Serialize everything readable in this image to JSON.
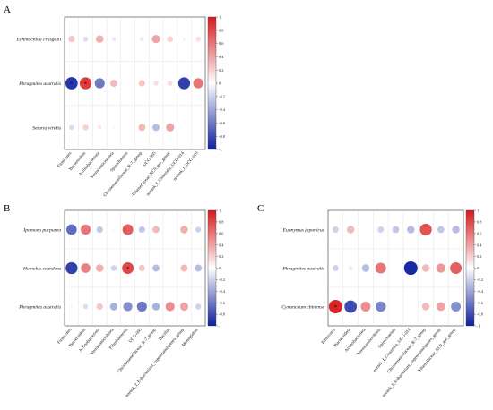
{
  "colorbar": {
    "ticks": [
      1,
      0.8,
      0.6,
      0.4,
      0.2,
      0,
      -0.2,
      -0.4,
      -0.6,
      -0.8,
      -1
    ],
    "colors": {
      "positive": "#d7191c",
      "neutral": "#ffffff",
      "negative": "#0b1f9e"
    }
  },
  "chart_data": [
    {
      "type": "heatmap",
      "panel_label": "A",
      "rows": [
        "Echinochloa crusgalli",
        "Phragmites australis",
        "Setaria viridis"
      ],
      "columns": [
        "Firmicutes",
        "Bacteroidota",
        "Actinobacteriota",
        "Verrucomicrobiota",
        "Spirochaetota",
        "Christensenellaceae_R-7_group",
        "UCG-005",
        "Rikenellaceae_RC9_gut_group",
        "norank_f_Clostridia_UCG-014",
        "norank_f_UCG-010"
      ],
      "values": [
        [
          0.25,
          -0.15,
          0.35,
          -0.1,
          0.0,
          -0.1,
          0.4,
          0.2,
          -0.05,
          0.15
        ],
        [
          -0.9,
          0.85,
          -0.6,
          0.3,
          0.0,
          0.25,
          0.15,
          0.15,
          -0.85,
          0.6
        ],
        [
          -0.15,
          0.2,
          0.1,
          0.05,
          0.0,
          0.3,
          -0.3,
          0.4,
          0.0,
          0.0
        ]
      ],
      "significance": [
        [
          "",
          "",
          "",
          "",
          "",
          "",
          "",
          "",
          "",
          ""
        ],
        [
          "*",
          "*",
          "",
          "",
          "",
          "",
          "",
          "",
          "",
          ""
        ],
        [
          "",
          "",
          "",
          "",
          "",
          "",
          "",
          "",
          "",
          ""
        ]
      ],
      "vmin": -1,
      "vmax": 1
    },
    {
      "type": "heatmap",
      "panel_label": "B",
      "rows": [
        "Ipomoea purpurea",
        "Humulus scandens",
        "Phragmites australis"
      ],
      "columns": [
        "Firmicutes",
        "Bacteroidota",
        "Actinobacteriota",
        "Verrucomicrobiota",
        "Fibrobacterota",
        "UCG-005",
        "Christensenellaceae_R-7_group",
        "Bacillus",
        "norank_f_Eubacterium_coprostanoligenes_group",
        "Monoglobus"
      ],
      "values": [
        [
          -0.65,
          0.6,
          -0.25,
          0.05,
          0.7,
          -0.25,
          0.3,
          0.0,
          0.35,
          -0.2
        ],
        [
          -0.85,
          0.55,
          0.35,
          -0.2,
          0.8,
          0.25,
          -0.3,
          0.0,
          0.3,
          -0.3
        ],
        [
          0.05,
          -0.15,
          0.25,
          -0.35,
          -0.5,
          -0.6,
          -0.35,
          0.5,
          0.4,
          -0.2
        ]
      ],
      "significance": [
        [
          "",
          "",
          "",
          "",
          "",
          "",
          "",
          "",
          "",
          ""
        ],
        [
          "",
          "",
          "",
          "",
          "*",
          "",
          "",
          "",
          "",
          ""
        ],
        [
          "",
          "",
          "",
          "",
          "",
          "",
          "",
          "",
          "",
          ""
        ]
      ],
      "vmin": -1,
      "vmax": 1
    },
    {
      "type": "heatmap",
      "panel_label": "C",
      "rows": [
        "Euonymus japonicus",
        "Phragmites australis",
        "Cynanchum chinense"
      ],
      "columns": [
        "Firmicutes",
        "Bacteroidota",
        "Actinobacteriota",
        "Verrucomicrobiota",
        "Spirochaetota",
        "norank_f_Clostridia_UCG-014",
        "Christensenellaceae_R-7_group",
        "norank_f_Eubacterium_coprostanoligenes_group",
        "Rikenellaceae_RC9_gut_group"
      ],
      "values": [
        [
          -0.2,
          0.3,
          0.0,
          -0.2,
          -0.25,
          -0.3,
          0.75,
          -0.25,
          -0.3
        ],
        [
          -0.2,
          0.1,
          -0.3,
          0.6,
          0.0,
          -0.95,
          0.3,
          0.45,
          0.7
        ],
        [
          0.95,
          -0.8,
          0.5,
          -0.55,
          0.0,
          0.0,
          0.3,
          0.4,
          -0.5
        ]
      ],
      "significance": [
        [
          "",
          "",
          "",
          "",
          "",
          "",
          "",
          "",
          ""
        ],
        [
          "",
          "",
          "",
          "",
          "",
          "",
          "",
          "",
          ""
        ],
        [
          "*",
          "",
          "",
          "",
          "",
          "",
          "",
          "",
          ""
        ]
      ],
      "vmin": -1,
      "vmax": 1
    }
  ]
}
